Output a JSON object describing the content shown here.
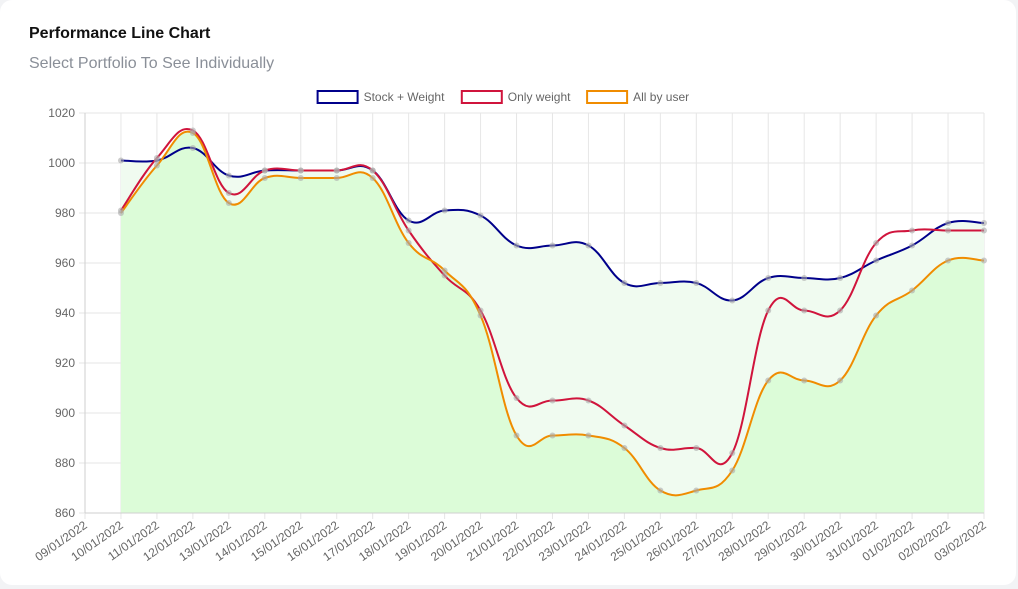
{
  "card": {
    "title": "Performance Line Chart",
    "subtitle": "Select Portfolio To See Individually"
  },
  "chart_data": {
    "type": "line",
    "x": [
      "09/01/2022",
      "10/01/2022",
      "11/01/2022",
      "12/01/2022",
      "13/01/2022",
      "14/01/2022",
      "15/01/2022",
      "16/01/2022",
      "17/01/2022",
      "18/01/2022",
      "19/01/2022",
      "20/01/2022",
      "21/01/2022",
      "22/01/2022",
      "23/01/2022",
      "24/01/2022",
      "25/01/2022",
      "26/01/2022",
      "27/01/2022",
      "28/01/2022",
      "29/01/2022",
      "30/01/2022",
      "31/01/2022",
      "01/02/2022",
      "02/02/2022",
      "03/02/2022"
    ],
    "yticks": [
      860,
      880,
      900,
      920,
      940,
      960,
      980,
      1000,
      1020
    ],
    "ylim": [
      860,
      1020
    ],
    "grid": true,
    "legend_position": "top-center",
    "series": [
      {
        "name": "Stock + Weight",
        "color": "#00008b",
        "fill": "#f0fbf0",
        "values": [
          null,
          1001,
          1001,
          1006,
          995,
          997,
          997,
          997,
          997,
          977,
          981,
          979,
          967,
          967,
          967,
          952,
          952,
          952,
          945,
          954,
          954,
          954,
          961,
          967,
          976,
          976
        ]
      },
      {
        "name": "Only weight",
        "color": "#d0143c",
        "fill": null,
        "values": [
          null,
          981,
          1002,
          1013,
          988,
          997,
          997,
          997,
          997,
          973,
          955,
          941,
          906,
          905,
          905,
          895,
          886,
          886,
          884,
          941,
          941,
          941,
          968,
          973,
          973,
          973
        ]
      },
      {
        "name": "All by user",
        "color": "#f08c00",
        "fill": "#dcfcd8",
        "values": [
          null,
          980,
          999,
          1012,
          984,
          994,
          994,
          994,
          994,
          968,
          957,
          939,
          891,
          891,
          891,
          886,
          869,
          869,
          877,
          913,
          913,
          913,
          939,
          949,
          961,
          961
        ]
      }
    ]
  }
}
